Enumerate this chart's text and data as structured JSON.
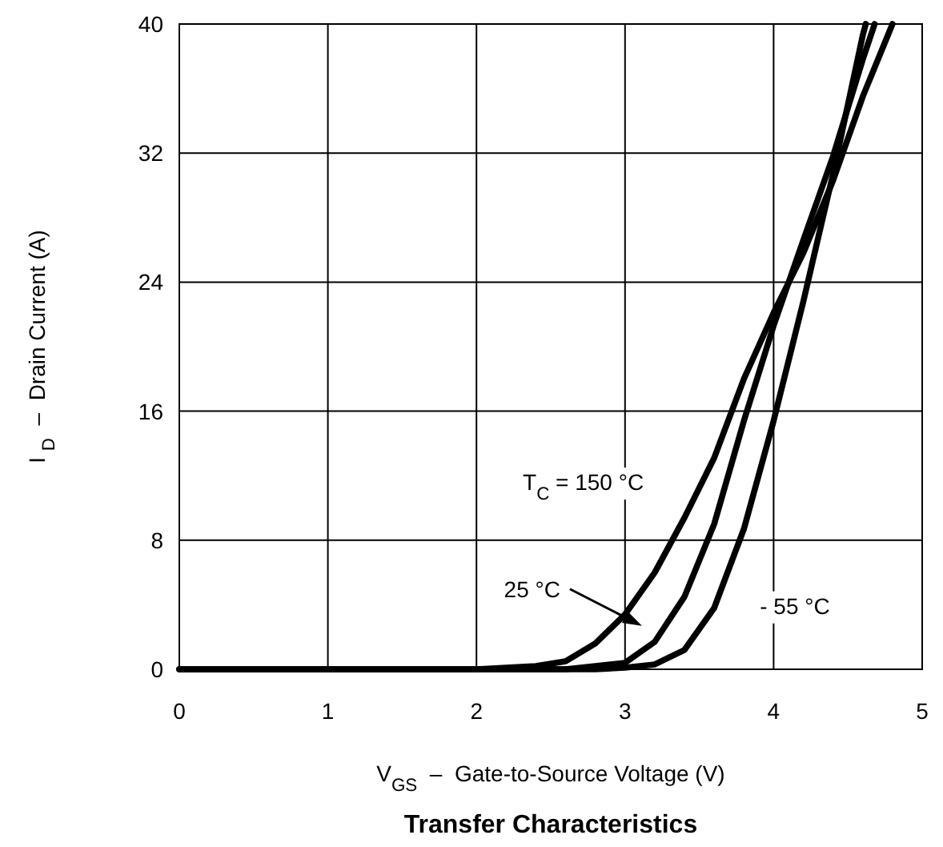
{
  "chart_data": {
    "type": "line",
    "title": "Transfer Characteristics",
    "xlabel": "V$_{GS}$  –  Gate-to-Source Voltage (V)",
    "ylabel": "I $_{D}$  –  Drain Current (A)",
    "xlim": [
      0,
      5
    ],
    "ylim": [
      0,
      40
    ],
    "xticks": [
      0,
      1,
      2,
      3,
      4,
      5
    ],
    "yticks": [
      0,
      8,
      16,
      24,
      32,
      40
    ],
    "grid": true,
    "marker": "none",
    "line_style": "solid",
    "series": [
      {
        "name": "T$_{C}$ = 150 °C",
        "color": "#000000",
        "x": [
          0,
          1,
          2,
          2.2,
          2.4,
          2.6,
          2.8,
          3.0,
          3.2,
          3.4,
          3.6,
          3.8,
          4.0,
          4.2,
          4.4,
          4.6,
          4.8
        ],
        "values": [
          0,
          0,
          0,
          0.1,
          0.2,
          0.5,
          1.6,
          3.4,
          6,
          9.4,
          13.1,
          18,
          22.1,
          25.8,
          30.3,
          35.5,
          40
        ]
      },
      {
        "name": "25 °C",
        "color": "#000000",
        "x": [
          0,
          1,
          2,
          2.6,
          2.8,
          3.0,
          3.2,
          3.4,
          3.6,
          3.8,
          4.0,
          4.2,
          4.4,
          4.6,
          4.68
        ],
        "values": [
          0,
          0,
          0,
          0,
          0.2,
          0.4,
          1.7,
          4.5,
          9,
          15.4,
          21.3,
          26.6,
          31.8,
          37.8,
          40
        ]
      },
      {
        "name": "- 55 °C",
        "color": "#000000",
        "x": [
          0,
          1,
          2,
          2.8,
          3.0,
          3.2,
          3.4,
          3.6,
          3.8,
          4.0,
          4.2,
          4.4,
          4.6,
          4.62
        ],
        "values": [
          0,
          0,
          0,
          0,
          0.1,
          0.3,
          1.2,
          3.8,
          8.7,
          15.4,
          22.8,
          30.7,
          39.3,
          40
        ]
      }
    ]
  }
}
